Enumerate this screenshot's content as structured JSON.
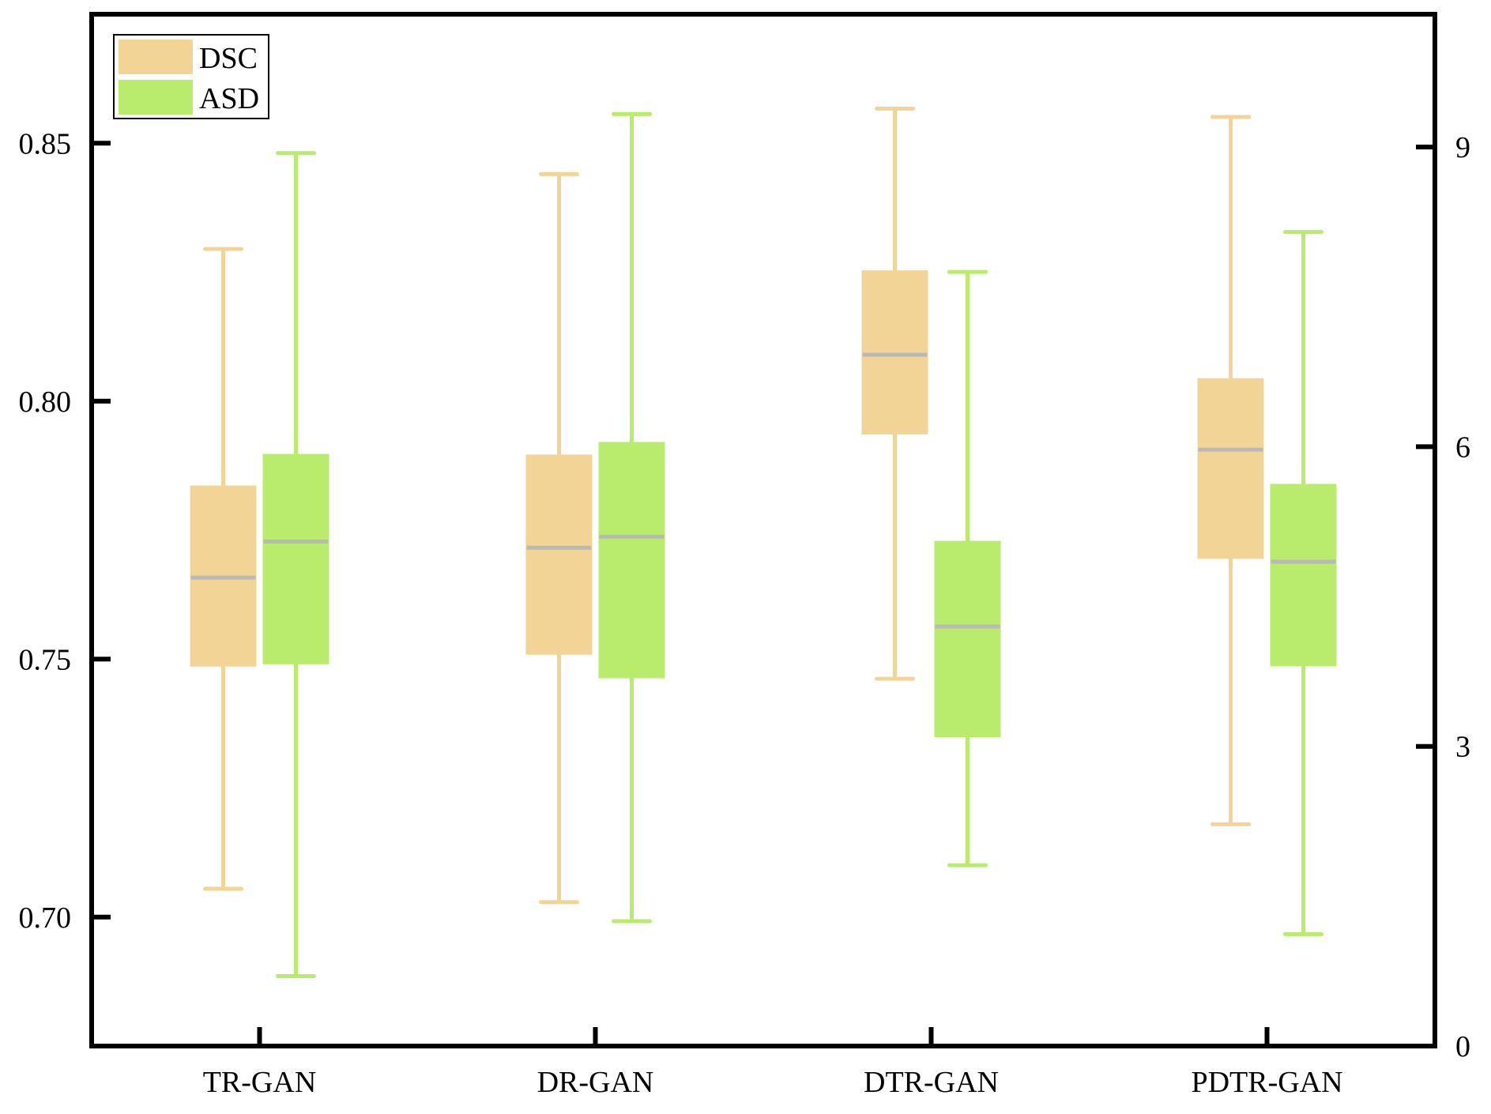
{
  "chart_data": {
    "type": "box",
    "title": "",
    "categories": [
      "TR-GAN",
      "DR-GAN",
      "DTR-GAN",
      "PDTR-GAN"
    ],
    "left_axis": {
      "ylim": [
        0.675,
        0.875
      ],
      "ticks": [
        0.7,
        0.75,
        0.8,
        0.85
      ],
      "tick_labels": [
        "0.70",
        "0.75",
        "0.80",
        "0.85"
      ]
    },
    "right_axis": {
      "ylim": [
        0,
        10.33
      ],
      "ticks": [
        0,
        3,
        6,
        9
      ],
      "tick_labels": [
        "0",
        "3",
        "6",
        "9"
      ]
    },
    "series": [
      {
        "name": "DSC",
        "axis": "left",
        "color": "#f2d596",
        "median_color": "#b9b9b9",
        "boxes": [
          {
            "min": 0.7055,
            "q1": 0.7487,
            "median": 0.7658,
            "q3": 0.7835,
            "max": 0.8295
          },
          {
            "min": 0.7029,
            "q1": 0.751,
            "median": 0.7716,
            "q3": 0.7895,
            "max": 0.844
          },
          {
            "min": 0.7462,
            "q1": 0.7937,
            "median": 0.809,
            "q3": 0.8252,
            "max": 0.8567
          },
          {
            "min": 0.718,
            "q1": 0.7696,
            "median": 0.7906,
            "q3": 0.8043,
            "max": 0.8551
          }
        ]
      },
      {
        "name": "ASD",
        "axis": "right",
        "color": "#b9eb6c",
        "median_color": "#b9b9b9",
        "boxes": [
          {
            "min": 0.7,
            "q1": 3.83,
            "median": 5.05,
            "q3": 5.92,
            "max": 8.94
          },
          {
            "min": 1.25,
            "q1": 3.69,
            "median": 5.1,
            "q3": 6.04,
            "max": 9.33
          },
          {
            "min": 1.81,
            "q1": 3.1,
            "median": 4.2,
            "q3": 5.05,
            "max": 7.75
          },
          {
            "min": 1.12,
            "q1": 3.81,
            "median": 4.85,
            "q3": 5.62,
            "max": 8.15
          }
        ]
      }
    ],
    "legend": {
      "position": "top-left",
      "entries": [
        {
          "label": "DSC",
          "color": "#f2d596"
        },
        {
          "label": "ASD",
          "color": "#b9eb6c"
        }
      ]
    }
  }
}
